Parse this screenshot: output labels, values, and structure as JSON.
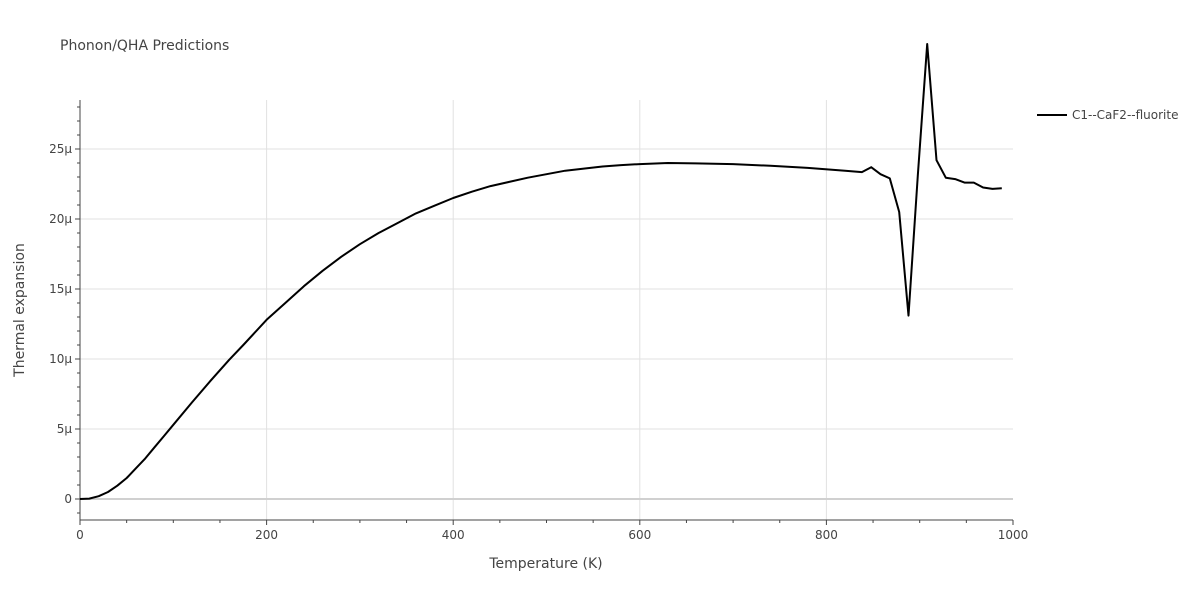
{
  "chart_data": {
    "type": "line",
    "title": "Phonon/QHA Predictions",
    "xlabel": "Temperature (K)",
    "ylabel": "Thermal expansion",
    "xlim": [
      0,
      1000
    ],
    "ylim": [
      -1.5,
      28.5
    ],
    "x_ticks": [
      0,
      200,
      400,
      600,
      800,
      1000
    ],
    "x_tick_labels": [
      "0",
      "200",
      "400",
      "600",
      "800",
      "1000"
    ],
    "y_ticks": [
      0,
      5,
      10,
      15,
      20,
      25
    ],
    "y_tick_labels": [
      "0",
      "5μ",
      "10μ",
      "15μ",
      "20μ",
      "25μ"
    ],
    "y_unit_multiplier": "1e-6",
    "grid": true,
    "legend_position": "top-right",
    "series": [
      {
        "name": "C1--CaF2--fluorite",
        "color": "#000000",
        "x": [
          0,
          10,
          20,
          30,
          40,
          50,
          60,
          70,
          80,
          90,
          100,
          120,
          140,
          160,
          175,
          200,
          220,
          240,
          260,
          280,
          300,
          320,
          340,
          360,
          380,
          400,
          420,
          440,
          460,
          480,
          500,
          520,
          540,
          560,
          580,
          600,
          630,
          660,
          700,
          740,
          780,
          820,
          838,
          848,
          858,
          868,
          878,
          888,
          898,
          908,
          918,
          928,
          938,
          948,
          958,
          968,
          978,
          988
        ],
        "y": [
          0,
          0.03,
          0.2,
          0.5,
          0.95,
          1.5,
          2.2,
          2.9,
          3.7,
          4.5,
          5.3,
          6.9,
          8.45,
          9.95,
          11.0,
          12.8,
          14.0,
          15.2,
          16.3,
          17.3,
          18.2,
          19.0,
          19.7,
          20.4,
          20.95,
          21.5,
          21.95,
          22.35,
          22.65,
          22.95,
          23.2,
          23.45,
          23.6,
          23.75,
          23.85,
          23.92,
          24.0,
          23.97,
          23.92,
          23.8,
          23.65,
          23.45,
          23.35,
          23.7,
          23.2,
          22.9,
          20.5,
          13.1,
          23.1,
          32.5,
          24.2,
          22.95,
          22.85,
          22.6,
          22.6,
          22.25,
          22.15,
          22.2
        ]
      }
    ]
  }
}
